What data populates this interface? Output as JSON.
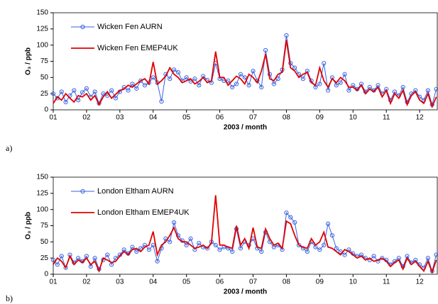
{
  "chart_data": [
    {
      "type": "line",
      "panel_label": "a)",
      "xlabel": "2003 / month",
      "ylabel": "O₃ / ppb",
      "x": [
        1,
        1.125,
        1.25,
        1.375,
        1.5,
        1.625,
        1.75,
        1.875,
        2,
        2.125,
        2.25,
        2.375,
        2.5,
        2.625,
        2.75,
        2.875,
        3,
        3.125,
        3.25,
        3.375,
        3.5,
        3.625,
        3.75,
        3.875,
        4,
        4.125,
        4.25,
        4.375,
        4.5,
        4.625,
        4.75,
        4.875,
        5,
        5.125,
        5.25,
        5.375,
        5.5,
        5.625,
        5.75,
        5.875,
        6,
        6.125,
        6.25,
        6.375,
        6.5,
        6.625,
        6.75,
        6.875,
        7,
        7.125,
        7.25,
        7.375,
        7.5,
        7.625,
        7.75,
        7.875,
        8,
        8.125,
        8.25,
        8.375,
        8.5,
        8.625,
        8.75,
        8.875,
        9,
        9.125,
        9.25,
        9.375,
        9.5,
        9.625,
        9.75,
        9.875,
        10,
        10.125,
        10.25,
        10.375,
        10.5,
        10.625,
        10.75,
        10.875,
        11,
        11.125,
        11.25,
        11.375,
        11.5,
        11.625,
        11.75,
        11.875,
        12,
        12.125,
        12.25,
        12.375,
        12.5
      ],
      "xlim": [
        1,
        12.53
      ],
      "xticks": [
        {
          "value": 1,
          "label": "01"
        },
        {
          "value": 2,
          "label": "02"
        },
        {
          "value": 3,
          "label": "03"
        },
        {
          "value": 4,
          "label": "04"
        },
        {
          "value": 5,
          "label": "05"
        },
        {
          "value": 6,
          "label": "06"
        },
        {
          "value": 7,
          "label": "07"
        },
        {
          "value": 8,
          "label": "08"
        },
        {
          "value": 9,
          "label": "09"
        },
        {
          "value": 10,
          "label": "10"
        },
        {
          "value": 11,
          "label": "11"
        },
        {
          "value": 12,
          "label": "12"
        }
      ],
      "ylim": [
        0,
        150
      ],
      "yticks": [
        0,
        25,
        50,
        75,
        100,
        125,
        150
      ],
      "series": [
        {
          "name": "Wicken Fen AURN",
          "color": "#3a62e0",
          "marker": true,
          "values": [
            25,
            18,
            28,
            12,
            22,
            30,
            15,
            27,
            33,
            20,
            28,
            10,
            25,
            22,
            30,
            18,
            28,
            35,
            30,
            40,
            33,
            45,
            38,
            42,
            50,
            42,
            13,
            55,
            48,
            62,
            58,
            45,
            50,
            44,
            48,
            38,
            52,
            46,
            42,
            72,
            48,
            45,
            45,
            35,
            40,
            55,
            50,
            38,
            60,
            45,
            35,
            92,
            55,
            40,
            48,
            62,
            115,
            72,
            65,
            55,
            48,
            60,
            45,
            35,
            40,
            72,
            30,
            50,
            38,
            42,
            55,
            30,
            38,
            32,
            40,
            28,
            35,
            30,
            38,
            25,
            32,
            15,
            28,
            22,
            35,
            12,
            25,
            30,
            20,
            15,
            30,
            8,
            32
          ]
        },
        {
          "name": "Wicken Fen EMEP4UK",
          "color": "#e00000",
          "marker": false,
          "values": [
            10,
            20,
            15,
            25,
            18,
            12,
            22,
            20,
            25,
            15,
            22,
            8,
            20,
            28,
            18,
            24,
            30,
            32,
            38,
            35,
            40,
            45,
            48,
            40,
            74,
            40,
            45,
            52,
            65,
            55,
            50,
            42,
            45,
            48,
            40,
            44,
            50,
            42,
            45,
            90,
            50,
            50,
            38,
            45,
            52,
            48,
            40,
            55,
            50,
            42,
            60,
            86,
            48,
            45,
            55,
            58,
            108,
            65,
            60,
            50,
            55,
            58,
            42,
            38,
            65,
            45,
            35,
            48,
            42,
            50,
            45,
            35,
            35,
            30,
            38,
            25,
            32,
            28,
            35,
            20,
            30,
            10,
            25,
            18,
            30,
            8,
            22,
            28,
            15,
            10,
            25,
            5,
            20
          ]
        }
      ]
    },
    {
      "type": "line",
      "panel_label": "b)",
      "xlabel": "2003 / month",
      "ylabel": "O₃ / ppb",
      "x": [
        1,
        1.125,
        1.25,
        1.375,
        1.5,
        1.625,
        1.75,
        1.875,
        2,
        2.125,
        2.25,
        2.375,
        2.5,
        2.625,
        2.75,
        2.875,
        3,
        3.125,
        3.25,
        3.375,
        3.5,
        3.625,
        3.75,
        3.875,
        4,
        4.125,
        4.25,
        4.375,
        4.5,
        4.625,
        4.75,
        4.875,
        5,
        5.125,
        5.25,
        5.375,
        5.5,
        5.625,
        5.75,
        5.875,
        6,
        6.125,
        6.25,
        6.375,
        6.5,
        6.625,
        6.75,
        6.875,
        7,
        7.125,
        7.25,
        7.375,
        7.5,
        7.625,
        7.75,
        7.875,
        8,
        8.125,
        8.25,
        8.375,
        8.5,
        8.625,
        8.75,
        8.875,
        9,
        9.125,
        9.25,
        9.375,
        9.5,
        9.625,
        9.75,
        9.875,
        10,
        10.125,
        10.25,
        10.375,
        10.5,
        10.625,
        10.75,
        10.875,
        11,
        11.125,
        11.25,
        11.375,
        11.5,
        11.625,
        11.75,
        11.875,
        12,
        12.125,
        12.25,
        12.375,
        12.5
      ],
      "xlim": [
        1,
        12.53
      ],
      "xticks": [
        {
          "value": 1,
          "label": "01"
        },
        {
          "value": 2,
          "label": "02"
        },
        {
          "value": 3,
          "label": "03"
        },
        {
          "value": 4,
          "label": "04"
        },
        {
          "value": 5,
          "label": "05"
        },
        {
          "value": 6,
          "label": "06"
        },
        {
          "value": 7,
          "label": "07"
        },
        {
          "value": 8,
          "label": "08"
        },
        {
          "value": 9,
          "label": "09"
        },
        {
          "value": 10,
          "label": "10"
        },
        {
          "value": 11,
          "label": "11"
        },
        {
          "value": 12,
          "label": "12"
        }
      ],
      "ylim": [
        0,
        150
      ],
      "yticks": [
        0,
        25,
        50,
        75,
        100,
        125,
        150
      ],
      "series": [
        {
          "name": "London Eltham AURN",
          "color": "#3a62e0",
          "marker": true,
          "values": [
            22,
            15,
            28,
            10,
            30,
            18,
            25,
            20,
            28,
            12,
            25,
            8,
            22,
            30,
            15,
            25,
            30,
            38,
            32,
            42,
            35,
            40,
            45,
            38,
            45,
            20,
            40,
            55,
            50,
            80,
            60,
            52,
            45,
            55,
            38,
            48,
            42,
            40,
            50,
            45,
            38,
            42,
            40,
            35,
            70,
            40,
            50,
            45,
            55,
            40,
            35,
            65,
            50,
            42,
            45,
            38,
            95,
            88,
            80,
            45,
            40,
            35,
            50,
            42,
            38,
            45,
            78,
            60,
            40,
            35,
            30,
            38,
            32,
            28,
            30,
            25,
            22,
            28,
            20,
            25,
            22,
            15,
            20,
            25,
            12,
            28,
            18,
            22,
            15,
            10,
            25,
            5,
            30
          ]
        },
        {
          "name": "London Eltham EMEP4UK",
          "color": "#e00000",
          "marker": false,
          "values": [
            15,
            25,
            20,
            10,
            28,
            15,
            22,
            18,
            25,
            15,
            20,
            5,
            25,
            22,
            18,
            20,
            28,
            35,
            30,
            38,
            40,
            35,
            42,
            45,
            66,
            30,
            45,
            50,
            60,
            72,
            55,
            50,
            50,
            45,
            40,
            42,
            45,
            40,
            48,
            122,
            45,
            45,
            42,
            40,
            75,
            45,
            55,
            40,
            72,
            42,
            40,
            70,
            55,
            45,
            48,
            40,
            82,
            78,
            60,
            45,
            42,
            40,
            55,
            45,
            50,
            65,
            42,
            40,
            35,
            30,
            38,
            35,
            30,
            25,
            28,
            22,
            25,
            20,
            22,
            25,
            20,
            12,
            18,
            22,
            8,
            25,
            15,
            20,
            12,
            5,
            20,
            3,
            22
          ]
        }
      ]
    }
  ]
}
